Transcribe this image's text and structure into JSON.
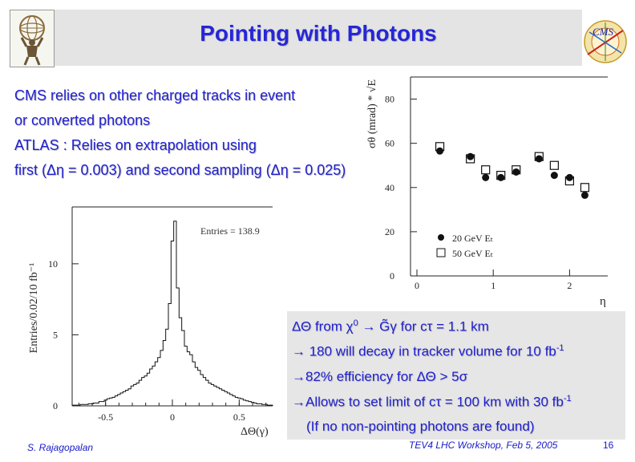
{
  "slide": {
    "title": "Pointing with Photons",
    "bullets": [
      "CMS relies on other charged tracks in event",
      "or converted photons",
      "ATLAS : Relies on extrapolation using",
      "first (Δη = 0.003) and second sampling (Δη = 0.025)"
    ],
    "box_lines": {
      "l1a": "ΔΘ from χ",
      "l1sup": "0",
      "l1b": " → G̃γ  for cτ = 1.1 km",
      "l2a": "→ 180 will decay in tracker volume for 10 fb",
      "l2sup": "-1",
      "l3": "→82% efficiency for ΔΘ > 5σ",
      "l4a": "→Allows to set limit of cτ = 100 km with 30 fb",
      "l4sup": "-1",
      "l5": "(If no non-pointing photons are found)"
    },
    "footer": {
      "author": "S. Rajagopalan",
      "event": "TEV4 LHC Workshop, Feb 5, 2005",
      "page": "16"
    },
    "logo_right_text": "CMS"
  },
  "colors": {
    "title": "#2626d8",
    "text": "#2020d0",
    "title_bar": "#e4e4e4",
    "box": "#e6e6e6"
  },
  "chart_data": [
    {
      "type": "histogram",
      "xlabel": "ΔΘ(γ)",
      "ylabel": "Entries/0.02/10 fb⁻¹",
      "legend": "Entries = 138.9",
      "xlim": [
        -0.75,
        0.75
      ],
      "ylim": [
        0,
        14
      ],
      "xticks": [
        -0.5,
        0,
        0.5
      ],
      "xtick_labels": [
        "-0.5",
        "0",
        "0.5"
      ],
      "yticks": [
        0,
        5,
        10
      ],
      "ytick_labels": [
        "0",
        "5",
        "10"
      ],
      "bins": [
        [
          -0.75,
          0.05
        ],
        [
          -0.73,
          0.05
        ],
        [
          -0.71,
          0.05
        ],
        [
          -0.69,
          0.1
        ],
        [
          -0.67,
          0.1
        ],
        [
          -0.65,
          0.1
        ],
        [
          -0.63,
          0.15
        ],
        [
          -0.61,
          0.15
        ],
        [
          -0.59,
          0.2
        ],
        [
          -0.57,
          0.2
        ],
        [
          -0.55,
          0.3
        ],
        [
          -0.53,
          0.3
        ],
        [
          -0.51,
          0.4
        ],
        [
          -0.49,
          0.5
        ],
        [
          -0.47,
          0.55
        ],
        [
          -0.45,
          0.6
        ],
        [
          -0.43,
          0.7
        ],
        [
          -0.41,
          0.8
        ],
        [
          -0.39,
          0.9
        ],
        [
          -0.37,
          1.0
        ],
        [
          -0.35,
          1.1
        ],
        [
          -0.33,
          1.2
        ],
        [
          -0.31,
          1.4
        ],
        [
          -0.29,
          1.5
        ],
        [
          -0.27,
          1.6
        ],
        [
          -0.25,
          1.8
        ],
        [
          -0.23,
          2.0
        ],
        [
          -0.21,
          2.1
        ],
        [
          -0.19,
          2.3
        ],
        [
          -0.17,
          2.6
        ],
        [
          -0.15,
          2.8
        ],
        [
          -0.13,
          3.1
        ],
        [
          -0.11,
          3.4
        ],
        [
          -0.09,
          3.9
        ],
        [
          -0.07,
          4.6
        ],
        [
          -0.05,
          5.4
        ],
        [
          -0.03,
          7.2
        ],
        [
          -0.01,
          11.6
        ],
        [
          0.01,
          13.0
        ],
        [
          0.03,
          8.3
        ],
        [
          0.05,
          6.2
        ],
        [
          0.07,
          5.3
        ],
        [
          0.09,
          4.2
        ],
        [
          0.11,
          3.8
        ],
        [
          0.13,
          3.6
        ],
        [
          0.15,
          3.1
        ],
        [
          0.17,
          2.7
        ],
        [
          0.19,
          2.5
        ],
        [
          0.21,
          2.2
        ],
        [
          0.23,
          2.0
        ],
        [
          0.25,
          1.8
        ],
        [
          0.27,
          1.6
        ],
        [
          0.29,
          1.5
        ],
        [
          0.31,
          1.4
        ],
        [
          0.33,
          1.3
        ],
        [
          0.35,
          1.2
        ],
        [
          0.37,
          1.1
        ],
        [
          0.39,
          1.0
        ],
        [
          0.41,
          0.9
        ],
        [
          0.43,
          0.8
        ],
        [
          0.45,
          0.7
        ],
        [
          0.47,
          0.6
        ],
        [
          0.49,
          0.55
        ],
        [
          0.51,
          0.5
        ],
        [
          0.53,
          0.4
        ],
        [
          0.55,
          0.35
        ],
        [
          0.57,
          0.3
        ],
        [
          0.59,
          0.25
        ],
        [
          0.61,
          0.2
        ],
        [
          0.63,
          0.15
        ],
        [
          0.65,
          0.15
        ],
        [
          0.67,
          0.1
        ],
        [
          0.69,
          0.1
        ],
        [
          0.71,
          0.05
        ],
        [
          0.73,
          0.05
        ]
      ]
    },
    {
      "type": "scatter",
      "xlabel": "η",
      "ylabel": "σθ (mrad) * √E",
      "xlim": [
        0,
        2.5
      ],
      "ylim": [
        0,
        90
      ],
      "xticks": [
        0,
        1,
        2
      ],
      "xtick_labels": [
        "0",
        "1",
        "2"
      ],
      "yticks": [
        0,
        20,
        40,
        60,
        80
      ],
      "ytick_labels": [
        "0",
        "20",
        "40",
        "60",
        "80"
      ],
      "series": [
        {
          "name": "20 GeV Eₜ",
          "marker": "filled-circle",
          "x": [
            0.3,
            0.7,
            0.9,
            1.1,
            1.3,
            1.6,
            1.8,
            2.0,
            2.2
          ],
          "y": [
            56.5,
            54,
            44.5,
            44.5,
            47,
            53,
            45.5,
            44.5,
            36.5
          ]
        },
        {
          "name": "50 GeV Eₜ",
          "marker": "open-square",
          "x": [
            0.3,
            0.7,
            0.9,
            1.1,
            1.3,
            1.6,
            1.8,
            2.0,
            2.2
          ],
          "y": [
            58.5,
            53,
            48,
            45.5,
            48,
            54,
            50,
            43,
            40
          ]
        }
      ]
    }
  ]
}
